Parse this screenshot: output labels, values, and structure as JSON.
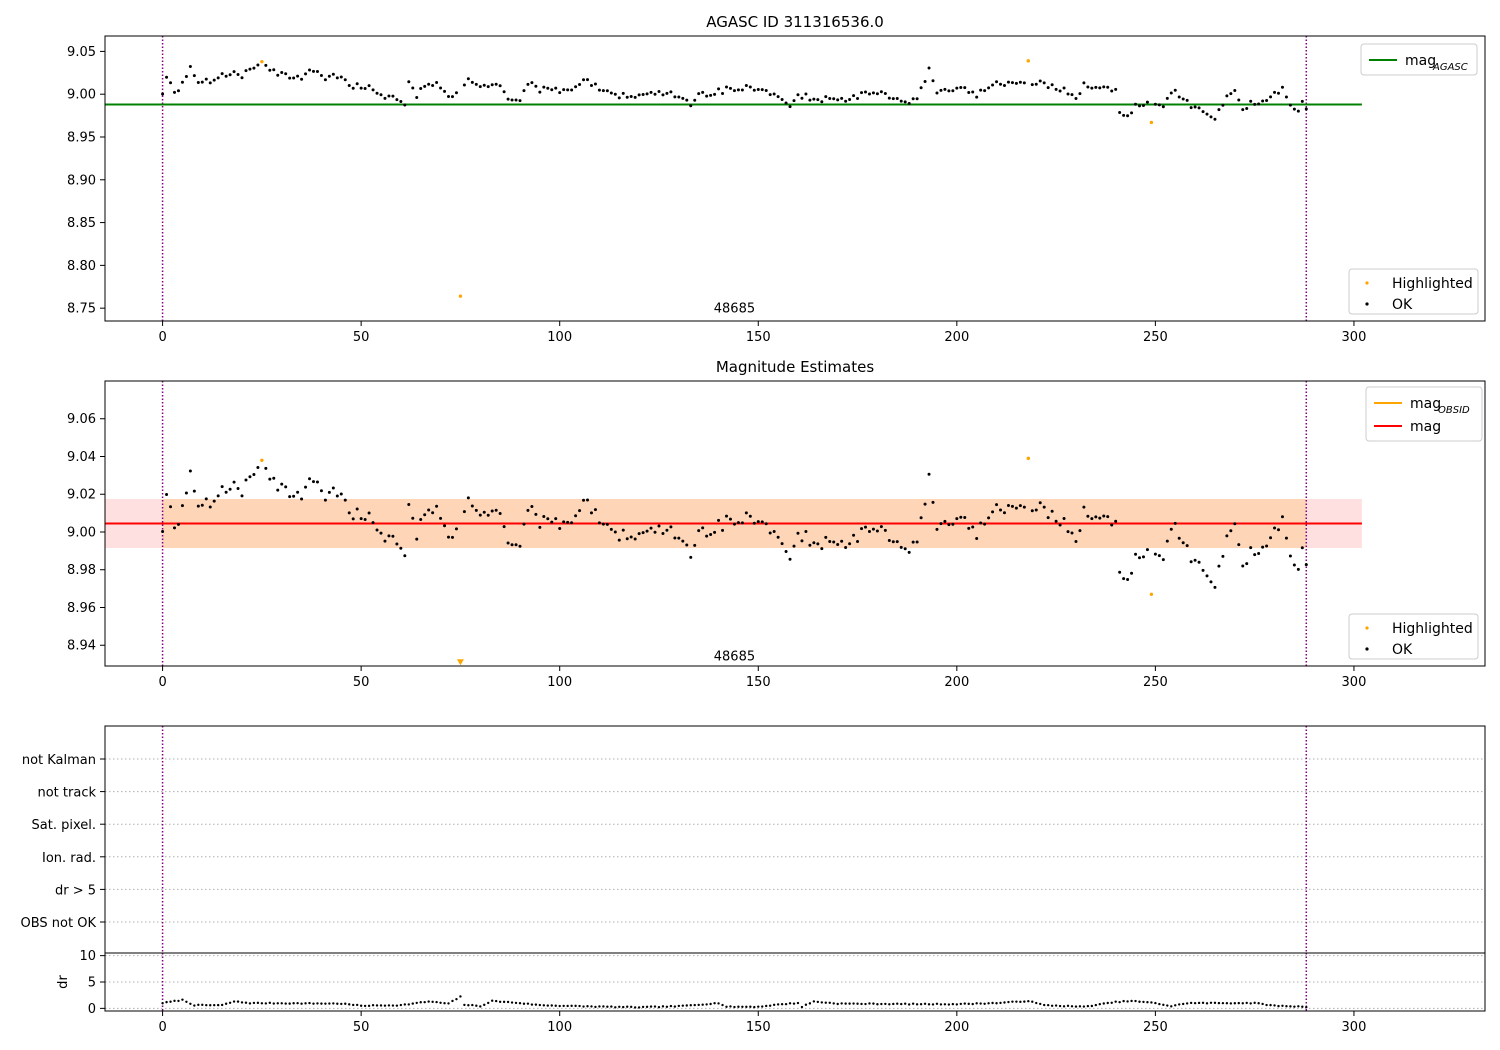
{
  "chart_data": [
    {
      "type": "scatter",
      "panel": "agasc",
      "title": "AGASC ID 311316536.0",
      "xlim": [
        -14.5,
        333
      ],
      "ylim": [
        8.735,
        9.068
      ],
      "xticks": [
        0,
        50,
        100,
        150,
        200,
        250,
        300
      ],
      "yticks": [
        8.75,
        8.8,
        8.85,
        8.9,
        8.95,
        9.0,
        9.05
      ],
      "ytick_labels": [
        "8.75",
        "8.80",
        "8.85",
        "8.90",
        "8.95",
        "9.00",
        "9.05"
      ],
      "hline": {
        "name": "mag_AGASC",
        "y": 8.988,
        "x": [
          -14.5,
          302
        ],
        "color": "#008000"
      },
      "vlines": [
        {
          "x": 0,
          "color": "#800080"
        },
        {
          "x": 288,
          "color": "#800080"
        }
      ],
      "annotations": [
        {
          "text": "48685",
          "x": 144,
          "y": 8.745
        }
      ],
      "legend_lines": [
        {
          "label_main": "mag",
          "label_sub": "AGASC",
          "color": "#008000"
        }
      ],
      "legend_points": [
        {
          "label": "Highlighted",
          "color": "#ffa500"
        },
        {
          "label": "OK",
          "color": "#000000"
        }
      ],
      "highlighted": [
        {
          "x": 25,
          "y": 9.038
        },
        {
          "x": 75,
          "y": 8.764
        },
        {
          "x": 218,
          "y": 9.039
        },
        {
          "x": 249,
          "y": 8.967
        }
      ],
      "ok": {
        "x_start": 0,
        "x_end": 288,
        "anchors": [
          [
            0,
            9.003
          ],
          [
            1,
            9.022
          ],
          [
            3,
            9.0
          ],
          [
            5,
            9.011
          ],
          [
            7,
            9.032
          ],
          [
            9,
            9.014
          ],
          [
            12,
            9.016
          ],
          [
            15,
            9.025
          ],
          [
            20,
            9.022
          ],
          [
            24,
            9.034
          ],
          [
            27,
            9.03
          ],
          [
            30,
            9.022
          ],
          [
            35,
            9.02
          ],
          [
            38,
            9.028
          ],
          [
            40,
            9.02
          ],
          [
            45,
            9.02
          ],
          [
            47,
            9.01
          ],
          [
            52,
            9.008
          ],
          [
            55,
            8.998
          ],
          [
            58,
            8.995
          ],
          [
            61,
            8.988
          ],
          [
            62,
            9.012
          ],
          [
            64,
            8.998
          ],
          [
            66,
            9.012
          ],
          [
            70,
            9.01
          ],
          [
            73,
            8.996
          ],
          [
            77,
            9.016
          ],
          [
            80,
            9.012
          ],
          [
            85,
            9.012
          ],
          [
            87,
            8.993
          ],
          [
            90,
            8.995
          ],
          [
            93,
            9.016
          ],
          [
            95,
            9.002
          ],
          [
            97,
            9.008
          ],
          [
            100,
            9.002
          ],
          [
            103,
            9.006
          ],
          [
            106,
            9.018
          ],
          [
            110,
            9.008
          ],
          [
            115,
            8.997
          ],
          [
            120,
            9.0
          ],
          [
            125,
            9.002
          ],
          [
            130,
            8.998
          ],
          [
            133,
            8.986
          ],
          [
            135,
            9.0
          ],
          [
            140,
            9.003
          ],
          [
            145,
            9.008
          ],
          [
            150,
            9.005
          ],
          [
            155,
            9.0
          ],
          [
            158,
            8.988
          ],
          [
            160,
            8.998
          ],
          [
            165,
            8.995
          ],
          [
            170,
            8.992
          ],
          [
            175,
            8.998
          ],
          [
            180,
            9.002
          ],
          [
            185,
            8.995
          ],
          [
            188,
            8.986
          ],
          [
            190,
            8.997
          ],
          [
            192,
            9.016
          ],
          [
            193,
            9.032
          ],
          [
            195,
            9.004
          ],
          [
            200,
            9.008
          ],
          [
            205,
            9.0
          ],
          [
            210,
            9.012
          ],
          [
            215,
            9.012
          ],
          [
            220,
            9.015
          ],
          [
            223,
            9.01
          ],
          [
            225,
            9.008
          ],
          [
            228,
            9.002
          ],
          [
            230,
            8.995
          ],
          [
            232,
            9.01
          ],
          [
            235,
            9.01
          ],
          [
            238,
            9.008
          ],
          [
            240,
            9.006
          ],
          [
            241,
            8.978
          ],
          [
            243,
            8.973
          ],
          [
            245,
            8.985
          ],
          [
            247,
            8.99
          ],
          [
            250,
            8.99
          ],
          [
            252,
            8.987
          ],
          [
            255,
            9.004
          ],
          [
            257,
            8.995
          ],
          [
            260,
            8.983
          ],
          [
            265,
            8.972
          ],
          [
            268,
            8.995
          ],
          [
            270,
            9.004
          ],
          [
            272,
            8.985
          ],
          [
            275,
            8.99
          ],
          [
            278,
            8.995
          ],
          [
            282,
            9.005
          ],
          [
            284,
            8.99
          ],
          [
            286,
            8.98
          ],
          [
            287,
            8.995
          ],
          [
            288,
            8.986
          ]
        ]
      }
    },
    {
      "type": "scatter",
      "panel": "estimates",
      "title": "Magnitude Estimates",
      "xlim": [
        -14.5,
        333
      ],
      "ylim": [
        8.929,
        9.08
      ],
      "xticks": [
        0,
        50,
        100,
        150,
        200,
        250,
        300
      ],
      "yticks": [
        8.94,
        8.96,
        8.98,
        9.0,
        9.02,
        9.04,
        9.06
      ],
      "ytick_labels": [
        "8.94",
        "8.96",
        "8.98",
        "9.00",
        "9.02",
        "9.04",
        "9.06"
      ],
      "hline": {
        "name": "mag",
        "y": 9.0045,
        "x": [
          -14.5,
          302
        ],
        "color": "#ff0000"
      },
      "band": {
        "y": [
          8.9915,
          9.0175
        ],
        "x": [
          -14.5,
          302
        ],
        "color": "#ff0000",
        "alpha": 0.12
      },
      "band_obs": {
        "y": [
          8.9915,
          9.0175
        ],
        "x": [
          0,
          288
        ],
        "color": "#ffa500",
        "alpha": 0.18
      },
      "vlines": [
        {
          "x": 0,
          "color": "#800080"
        },
        {
          "x": 288,
          "color": "#800080"
        }
      ],
      "annotations": [
        {
          "text": "48685",
          "x": 144,
          "y": 8.932
        }
      ],
      "legend_lines": [
        {
          "label_main": "mag",
          "label_sub": "OBSID",
          "color": "#ffa500"
        },
        {
          "label_main": "mag",
          "label_sub": "",
          "color": "#ff0000"
        }
      ],
      "legend_points": [
        {
          "label": "Highlighted",
          "color": "#ffa500"
        },
        {
          "label": "OK",
          "color": "#000000"
        }
      ],
      "highlighted": [
        {
          "x": 25,
          "y": 9.038
        },
        {
          "x": 218,
          "y": 9.039
        },
        {
          "x": 249,
          "y": 8.967
        }
      ],
      "triangle": {
        "x": 75,
        "y": 8.931,
        "color": "#ffa500"
      }
    },
    {
      "type": "scatter",
      "panel": "flags",
      "xlim": [
        -14.5,
        333
      ],
      "categories": [
        "not Kalman",
        "not track",
        "Sat. pixel.",
        "Ion. rad.",
        "dr > 5",
        "OBS not OK"
      ],
      "vlines": [
        {
          "x": 0,
          "color": "#800080"
        },
        {
          "x": 288,
          "color": "#800080"
        }
      ]
    },
    {
      "type": "scatter",
      "panel": "dr",
      "ylabel": "dr",
      "xlim": [
        -14.5,
        333
      ],
      "ylim": [
        -0.5,
        10.5
      ],
      "xticks": [
        0,
        50,
        100,
        150,
        200,
        250,
        300
      ],
      "yticks": [
        0,
        5,
        10
      ],
      "ytick_labels": [
        "0",
        "5",
        "10"
      ],
      "vlines": [
        {
          "x": 0,
          "color": "#800080"
        },
        {
          "x": 288,
          "color": "#800080"
        }
      ],
      "dr_anchors": [
        [
          0,
          1.0
        ],
        [
          5,
          1.6
        ],
        [
          8,
          0.6
        ],
        [
          15,
          0.6
        ],
        [
          18,
          1.3
        ],
        [
          22,
          1.0
        ],
        [
          45,
          0.9
        ],
        [
          50,
          0.5
        ],
        [
          60,
          0.6
        ],
        [
          67,
          1.3
        ],
        [
          72,
          0.9
        ],
        [
          75,
          2.2
        ],
        [
          76,
          0.7
        ],
        [
          80,
          0.4
        ],
        [
          83,
          1.4
        ],
        [
          90,
          1.0
        ],
        [
          95,
          0.6
        ],
        [
          105,
          0.4
        ],
        [
          112,
          0.3
        ],
        [
          120,
          0.2
        ],
        [
          130,
          0.4
        ],
        [
          140,
          1.0
        ],
        [
          142,
          0.3
        ],
        [
          150,
          0.3
        ],
        [
          156,
          0.8
        ],
        [
          160,
          1.0
        ],
        [
          161,
          0.3
        ],
        [
          164,
          1.3
        ],
        [
          170,
          0.9
        ],
        [
          190,
          0.8
        ],
        [
          200,
          0.8
        ],
        [
          210,
          1.0
        ],
        [
          218,
          1.4
        ],
        [
          222,
          0.6
        ],
        [
          232,
          0.3
        ],
        [
          240,
          1.2
        ],
        [
          244,
          1.4
        ],
        [
          250,
          1.0
        ],
        [
          254,
          0.4
        ],
        [
          258,
          1.0
        ],
        [
          275,
          1.0
        ],
        [
          280,
          0.5
        ],
        [
          288,
          0.3
        ]
      ]
    }
  ]
}
